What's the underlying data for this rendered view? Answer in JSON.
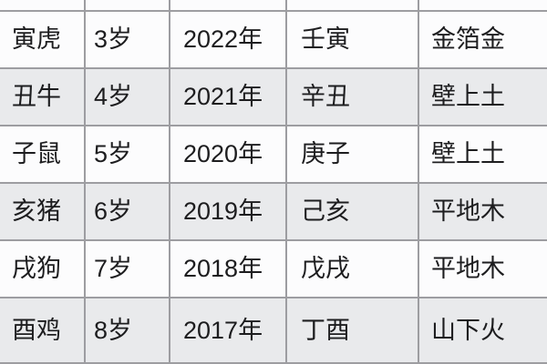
{
  "chart_data": {
    "type": "table",
    "fields": [
      "zodiac",
      "age",
      "year",
      "ganzhi",
      "wuxing"
    ],
    "rows": [
      {
        "zodiac": "寅虎",
        "age": "3岁",
        "year": "2022年",
        "ganzhi": "壬寅",
        "wuxing": "金箔金"
      },
      {
        "zodiac": "丑牛",
        "age": "4岁",
        "year": "2021年",
        "ganzhi": "辛丑",
        "wuxing": "壁上土"
      },
      {
        "zodiac": "子鼠",
        "age": "5岁",
        "year": "2020年",
        "ganzhi": "庚子",
        "wuxing": "壁上土"
      },
      {
        "zodiac": "亥猪",
        "age": "6岁",
        "year": "2019年",
        "ganzhi": "己亥",
        "wuxing": "平地木"
      },
      {
        "zodiac": "戌狗",
        "age": "7岁",
        "year": "2018年",
        "ganzhi": "戊戌",
        "wuxing": "平地木"
      },
      {
        "zodiac": "酉鸡",
        "age": "8岁",
        "year": "2017年",
        "ganzhi": "丁酉",
        "wuxing": "山下火"
      }
    ],
    "layout": {
      "grid": true,
      "alternating_rows": true,
      "top_row_cutoff": true,
      "header_visible": false
    }
  },
  "colors": {
    "row_white": "#fcfcfd",
    "row_gray": "#e9eaec",
    "border": "#9d9da1",
    "text": "#1d1d1f"
  }
}
